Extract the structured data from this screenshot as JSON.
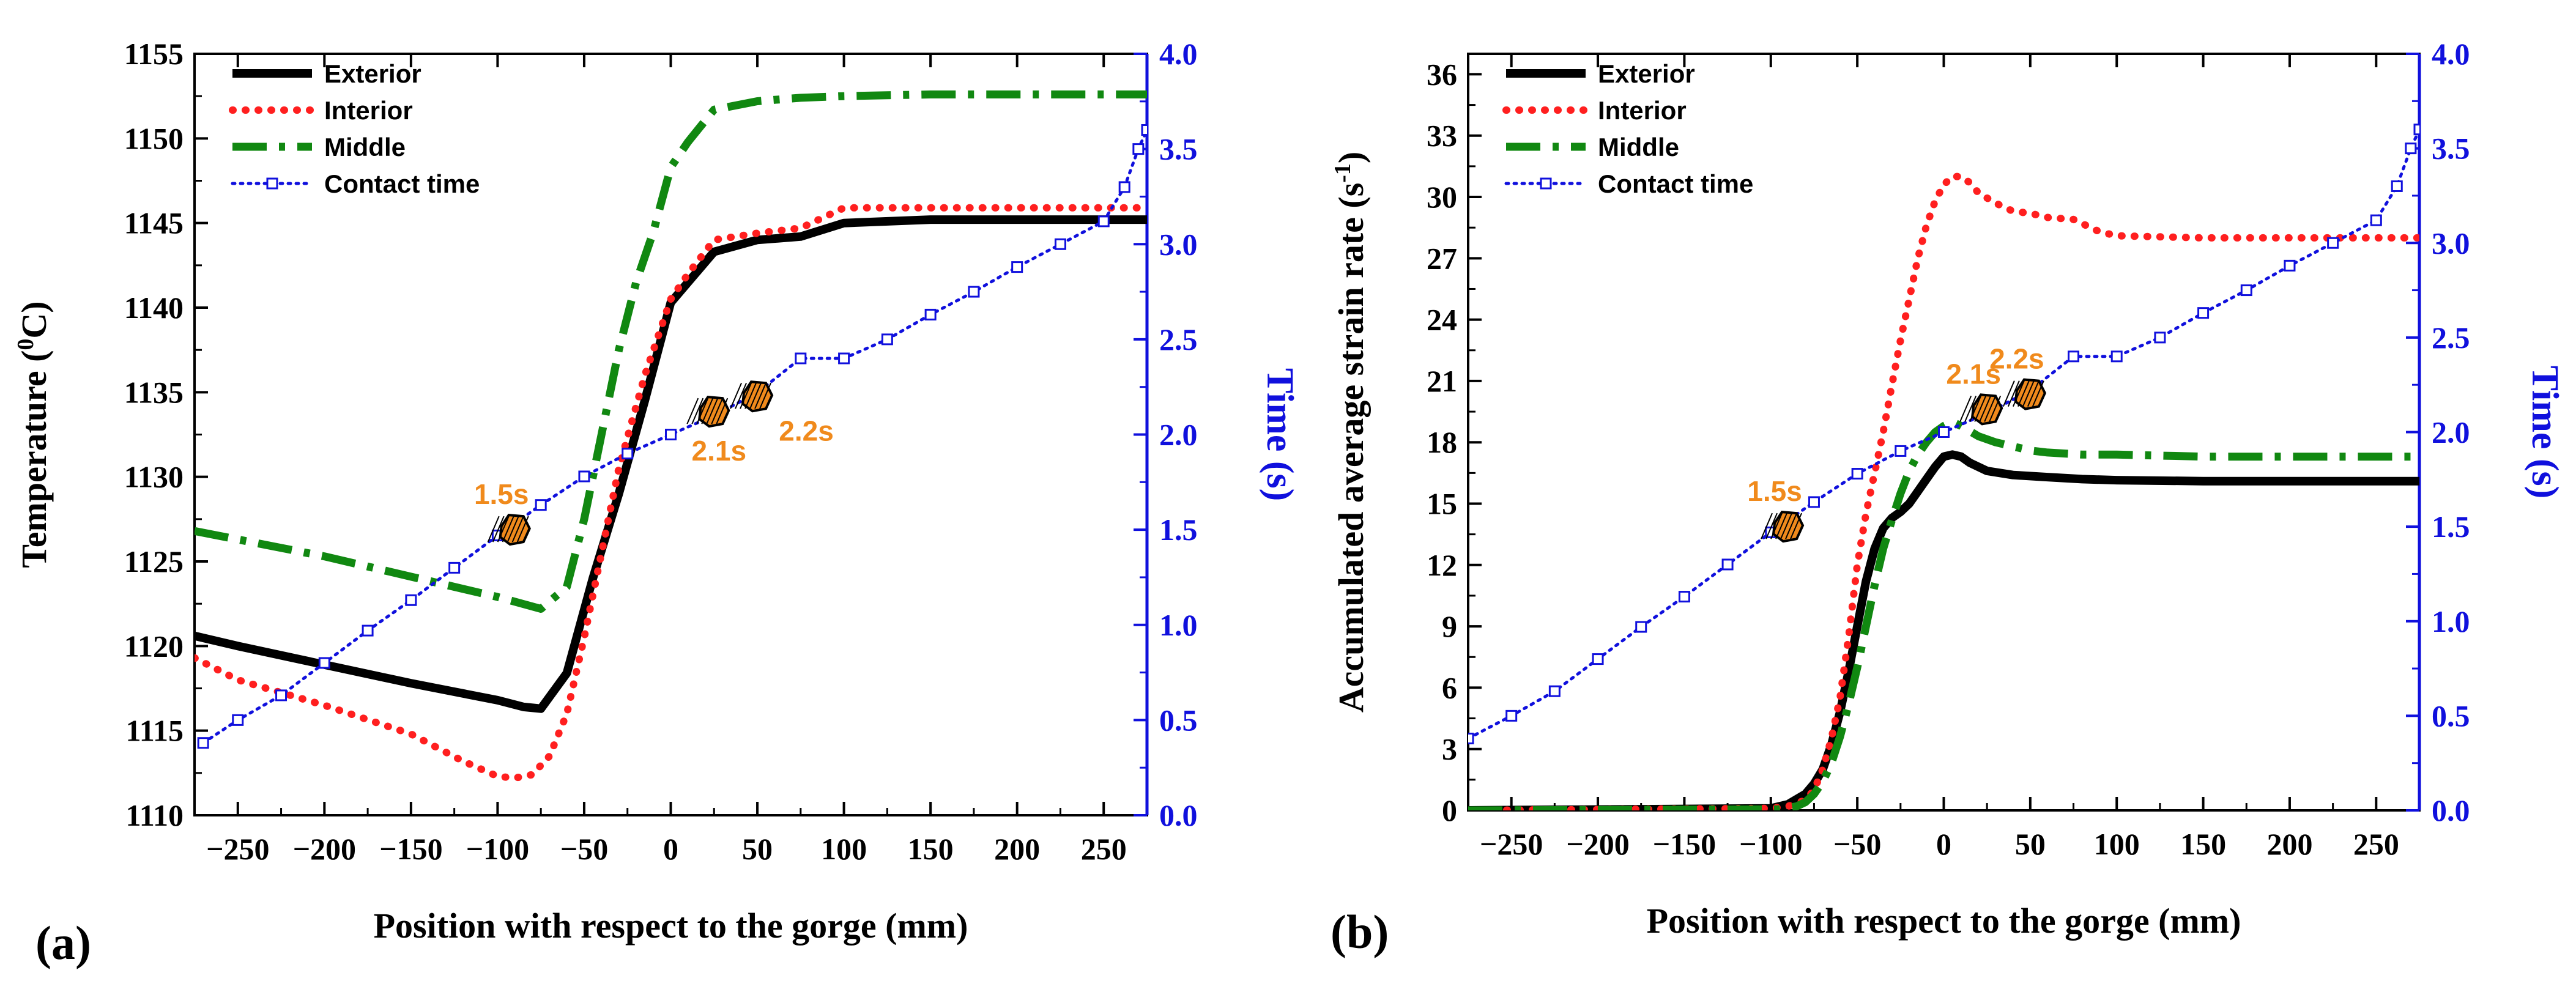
{
  "colors": {
    "exterior": "#000000",
    "interior": "#ff1f1f",
    "middle": "#118811",
    "contact": "#1010dd",
    "right_axis": "#1010dd",
    "annotation_text": "#f08a1c",
    "annotation_marker": "#f08a1c"
  },
  "chart_data": [
    {
      "type": "line",
      "panel_label": "(a)",
      "xlabel": "Position with respect to the gorge (mm)",
      "ylabel_left": "Temperature (",
      "ylabel_left_sup": "0",
      "ylabel_left_suffix": "C)",
      "ylabel_right": "Time (s)",
      "xlim": [
        -275,
        275
      ],
      "ylim_left": [
        1110,
        1155
      ],
      "ylim_right": [
        0,
        4
      ],
      "xticks": [
        -250,
        -200,
        -150,
        -100,
        -50,
        0,
        50,
        100,
        150,
        200,
        250
      ],
      "yticks_left": [
        1110,
        1115,
        1120,
        1125,
        1130,
        1135,
        1140,
        1145,
        1150,
        1155
      ],
      "yticks_right": [
        "0.0",
        "0.5",
        "1.0",
        "1.5",
        "2.0",
        "2.5",
        "3.0",
        "3.5",
        "4.0"
      ],
      "legend": {
        "position": "top-left",
        "entries": [
          "Exterior",
          "Interior",
          "Middle",
          "Contact time"
        ]
      },
      "series": [
        {
          "name": "Exterior",
          "axis": "left",
          "style": "solid",
          "x": [
            -275,
            -250,
            -200,
            -150,
            -100,
            -85,
            -75,
            -60,
            -45,
            -30,
            -15,
            0,
            10,
            25,
            50,
            75,
            100,
            150,
            200,
            250,
            275
          ],
          "y": [
            1120.6,
            1120,
            1118.9,
            1117.8,
            1116.8,
            1116.4,
            1116.3,
            1118.4,
            1124,
            1129,
            1134.5,
            1140.3,
            1141.5,
            1143.3,
            1144,
            1144.2,
            1145,
            1145.2,
            1145.2,
            1145.2,
            1145.2
          ]
        },
        {
          "name": "Interior",
          "axis": "left",
          "style": "dotted",
          "x": [
            -275,
            -250,
            -200,
            -150,
            -120,
            -100,
            -90,
            -80,
            -70,
            -60,
            -50,
            -40,
            -30,
            -15,
            0,
            10,
            25,
            50,
            75,
            100,
            150,
            200,
            250,
            275
          ],
          "y": [
            1119.3,
            1118,
            1116.5,
            1114.8,
            1113.2,
            1112.3,
            1112.2,
            1112.4,
            1113.5,
            1116,
            1120.5,
            1125.5,
            1130.5,
            1136,
            1140.5,
            1142,
            1144,
            1144.4,
            1144.7,
            1145.9,
            1145.9,
            1145.9,
            1145.9,
            1145.9
          ]
        },
        {
          "name": "Middle",
          "axis": "left",
          "style": "dashdot",
          "x": [
            -275,
            -200,
            -150,
            -100,
            -75,
            -60,
            -50,
            -40,
            -30,
            -20,
            -10,
            0,
            10,
            25,
            50,
            75,
            100,
            150,
            200,
            250,
            275
          ],
          "y": [
            1126.8,
            1125.3,
            1124.1,
            1122.9,
            1122.2,
            1123.5,
            1127.5,
            1132.5,
            1137.5,
            1141.5,
            1144.5,
            1148.3,
            1149.8,
            1151.7,
            1152.2,
            1152.4,
            1152.5,
            1152.6,
            1152.6,
            1152.6,
            1152.6
          ]
        },
        {
          "name": "Contact time",
          "axis": "right",
          "style": "dotted-square",
          "x": [
            -270,
            -250,
            -225,
            -200,
            -175,
            -150,
            -125,
            -100,
            -75,
            -50,
            -25,
            0,
            25,
            50,
            75,
            100,
            125,
            150,
            175,
            200,
            225,
            250,
            262,
            270,
            275
          ],
          "y": [
            0.38,
            0.5,
            0.63,
            0.8,
            0.97,
            1.13,
            1.3,
            1.47,
            1.63,
            1.78,
            1.9,
            2.0,
            2.1,
            2.22,
            2.4,
            2.4,
            2.5,
            2.63,
            2.75,
            2.88,
            3.0,
            3.12,
            3.3,
            3.5,
            3.6
          ]
        }
      ],
      "annotations": [
        {
          "label": "1.5s",
          "x": -90,
          "y_right": 1.5,
          "label_side": "above"
        },
        {
          "label": "2.1s",
          "x": 25,
          "y_right": 2.12,
          "label_side": "below"
        },
        {
          "label": "2.2s",
          "x": 50,
          "y_right": 2.2,
          "label_side": "below-right"
        }
      ]
    },
    {
      "type": "line",
      "panel_label": "(b)",
      "xlabel": "Position with respect to the gorge (mm)",
      "ylabel_left": "Accumulated average strain rate (s",
      "ylabel_left_sup": "-1",
      "ylabel_left_suffix": ")",
      "ylabel_right": "Time (s)",
      "xlim": [
        -275,
        275
      ],
      "ylim_left": [
        0,
        37
      ],
      "ylim_right": [
        0,
        4
      ],
      "xticks": [
        -250,
        -200,
        -150,
        -100,
        -50,
        0,
        50,
        100,
        150,
        200,
        250
      ],
      "yticks_left": [
        0,
        3,
        6,
        9,
        12,
        15,
        18,
        21,
        24,
        27,
        30,
        33,
        36
      ],
      "yticks_right": [
        "0.0",
        "0.5",
        "1.0",
        "1.5",
        "2.0",
        "2.5",
        "3.0",
        "3.5",
        "4.0"
      ],
      "legend": {
        "position": "top-left",
        "entries": [
          "Exterior",
          "Interior",
          "Middle",
          "Contact time"
        ]
      },
      "series": [
        {
          "name": "Exterior",
          "axis": "left",
          "style": "solid",
          "x": [
            -275,
            -100,
            -90,
            -80,
            -75,
            -70,
            -65,
            -60,
            -55,
            -50,
            -45,
            -40,
            -35,
            -30,
            -25,
            -20,
            -15,
            -10,
            -5,
            0,
            5,
            10,
            15,
            25,
            40,
            60,
            80,
            100,
            150,
            200,
            250,
            275
          ],
          "y": [
            0,
            0.1,
            0.3,
            0.8,
            1.3,
            2,
            3.2,
            4.8,
            6.8,
            9,
            11.2,
            12.8,
            13.8,
            14.3,
            14.6,
            15,
            15.6,
            16.2,
            16.8,
            17.3,
            17.4,
            17.3,
            17,
            16.6,
            16.4,
            16.3,
            16.2,
            16.15,
            16.1,
            16.1,
            16.1,
            16.1
          ]
        },
        {
          "name": "Interior",
          "axis": "left",
          "style": "dotted",
          "x": [
            -275,
            -100,
            -90,
            -80,
            -75,
            -70,
            -65,
            -60,
            -55,
            -50,
            -45,
            -40,
            -35,
            -30,
            -25,
            -20,
            -15,
            -10,
            -5,
            0,
            5,
            10,
            15,
            20,
            30,
            40,
            50,
            60,
            75,
            90,
            100,
            150,
            200,
            250,
            275
          ],
          "y": [
            0,
            0.1,
            0.2,
            0.5,
            1,
            2,
            3.5,
            5.5,
            8.5,
            12,
            14.5,
            16.5,
            18.5,
            20.8,
            23,
            25,
            27,
            28.6,
            29.8,
            30.6,
            31,
            31,
            30.7,
            30.2,
            29.7,
            29.3,
            29.2,
            29,
            28.9,
            28.3,
            28.1,
            28,
            28,
            28,
            28
          ]
        },
        {
          "name": "Middle",
          "axis": "left",
          "style": "dashdot",
          "x": [
            -275,
            -95,
            -85,
            -80,
            -75,
            -70,
            -65,
            -60,
            -55,
            -50,
            -45,
            -40,
            -35,
            -30,
            -25,
            -20,
            -15,
            -10,
            -5,
            0,
            5,
            10,
            20,
            30,
            40,
            50,
            60,
            80,
            100,
            150,
            200,
            250,
            275
          ],
          "y": [
            0,
            0.05,
            0.2,
            0.4,
            0.8,
            1.4,
            2.3,
            3.6,
            5.2,
            7,
            9,
            11,
            12.8,
            14.2,
            15.5,
            16.6,
            17.4,
            18,
            18.5,
            18.8,
            19,
            18.8,
            18.3,
            18,
            17.8,
            17.6,
            17.5,
            17.4,
            17.4,
            17.3,
            17.3,
            17.3,
            17.3
          ]
        },
        {
          "name": "Contact time",
          "axis": "right",
          "style": "dotted-square",
          "x": [
            -275,
            -250,
            -225,
            -200,
            -175,
            -150,
            -125,
            -100,
            -75,
            -50,
            -25,
            0,
            25,
            50,
            75,
            100,
            125,
            150,
            175,
            200,
            225,
            250,
            262,
            270,
            275
          ],
          "y": [
            0.38,
            0.5,
            0.63,
            0.8,
            0.97,
            1.13,
            1.3,
            1.47,
            1.63,
            1.78,
            1.9,
            2.0,
            2.1,
            2.22,
            2.4,
            2.4,
            2.5,
            2.63,
            2.75,
            2.88,
            3.0,
            3.12,
            3.3,
            3.5,
            3.6
          ]
        }
      ],
      "annotations": [
        {
          "label": "1.5s",
          "x": -90,
          "y_right": 1.5,
          "label_side": "above"
        },
        {
          "label": "2.1s",
          "x": 25,
          "y_right": 2.12,
          "label_side": "above"
        },
        {
          "label": "2.2s",
          "x": 50,
          "y_right": 2.2,
          "label_side": "above"
        }
      ]
    }
  ]
}
